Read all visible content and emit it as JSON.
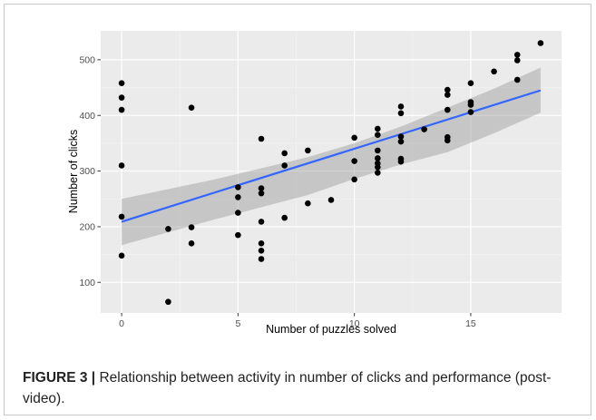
{
  "chart_data": {
    "type": "scatter",
    "xlabel": "Number of puzzles solved",
    "ylabel": "Number of clicks",
    "xlim": [
      -0.9,
      18.9
    ],
    "ylim": [
      45,
      552
    ],
    "xticks": [
      0,
      5,
      10,
      15
    ],
    "yticks": [
      100,
      200,
      300,
      400,
      500
    ],
    "grid": true,
    "points": [
      {
        "x": 0,
        "y": 458
      },
      {
        "x": 0,
        "y": 432
      },
      {
        "x": 0,
        "y": 410
      },
      {
        "x": 0,
        "y": 310
      },
      {
        "x": 0,
        "y": 218
      },
      {
        "x": 0,
        "y": 148
      },
      {
        "x": 2,
        "y": 196
      },
      {
        "x": 2,
        "y": 65
      },
      {
        "x": 3,
        "y": 414
      },
      {
        "x": 3,
        "y": 199
      },
      {
        "x": 3,
        "y": 170
      },
      {
        "x": 5,
        "y": 271
      },
      {
        "x": 5,
        "y": 253
      },
      {
        "x": 5,
        "y": 225
      },
      {
        "x": 5,
        "y": 185
      },
      {
        "x": 6,
        "y": 358
      },
      {
        "x": 6,
        "y": 269
      },
      {
        "x": 6,
        "y": 260
      },
      {
        "x": 6,
        "y": 209
      },
      {
        "x": 6,
        "y": 170
      },
      {
        "x": 6,
        "y": 157
      },
      {
        "x": 6,
        "y": 142
      },
      {
        "x": 7,
        "y": 332
      },
      {
        "x": 7,
        "y": 310
      },
      {
        "x": 7,
        "y": 216
      },
      {
        "x": 8,
        "y": 337
      },
      {
        "x": 8,
        "y": 242
      },
      {
        "x": 9,
        "y": 248
      },
      {
        "x": 10,
        "y": 360
      },
      {
        "x": 10,
        "y": 318
      },
      {
        "x": 10,
        "y": 285
      },
      {
        "x": 11,
        "y": 376
      },
      {
        "x": 11,
        "y": 365
      },
      {
        "x": 11,
        "y": 337
      },
      {
        "x": 11,
        "y": 323
      },
      {
        "x": 11,
        "y": 314
      },
      {
        "x": 11,
        "y": 307
      },
      {
        "x": 11,
        "y": 297
      },
      {
        "x": 12,
        "y": 416
      },
      {
        "x": 12,
        "y": 404
      },
      {
        "x": 12,
        "y": 362
      },
      {
        "x": 12,
        "y": 353
      },
      {
        "x": 12,
        "y": 322
      },
      {
        "x": 12,
        "y": 317
      },
      {
        "x": 13,
        "y": 375
      },
      {
        "x": 14,
        "y": 446
      },
      {
        "x": 14,
        "y": 437
      },
      {
        "x": 14,
        "y": 410
      },
      {
        "x": 14,
        "y": 361
      },
      {
        "x": 14,
        "y": 355
      },
      {
        "x": 15,
        "y": 458
      },
      {
        "x": 15,
        "y": 424
      },
      {
        "x": 15,
        "y": 419
      },
      {
        "x": 15,
        "y": 406
      },
      {
        "x": 16,
        "y": 479
      },
      {
        "x": 17,
        "y": 509
      },
      {
        "x": 17,
        "y": 499
      },
      {
        "x": 17,
        "y": 464
      },
      {
        "x": 18,
        "y": 530
      }
    ],
    "trend": {
      "color": "#3366ff",
      "band_color": "#999999",
      "fit": [
        {
          "x": 0,
          "y": 209
        },
        {
          "x": 18,
          "y": 445
        }
      ],
      "upper": [
        {
          "x": 0,
          "y": 250
        },
        {
          "x": 4,
          "y": 285
        },
        {
          "x": 8,
          "y": 325
        },
        {
          "x": 10,
          "y": 350
        },
        {
          "x": 12,
          "y": 380
        },
        {
          "x": 14,
          "y": 414
        },
        {
          "x": 16,
          "y": 448
        },
        {
          "x": 18,
          "y": 486
        }
      ],
      "lower": [
        {
          "x": 0,
          "y": 167
        },
        {
          "x": 4,
          "y": 213
        },
        {
          "x": 8,
          "y": 257
        },
        {
          "x": 10,
          "y": 286
        },
        {
          "x": 12,
          "y": 312
        },
        {
          "x": 14,
          "y": 334
        },
        {
          "x": 16,
          "y": 368
        },
        {
          "x": 18,
          "y": 405
        }
      ]
    }
  },
  "caption": {
    "label": "FIGURE 3 |",
    "text": " Relationship between activity in number of clicks and performance (post-video)."
  }
}
